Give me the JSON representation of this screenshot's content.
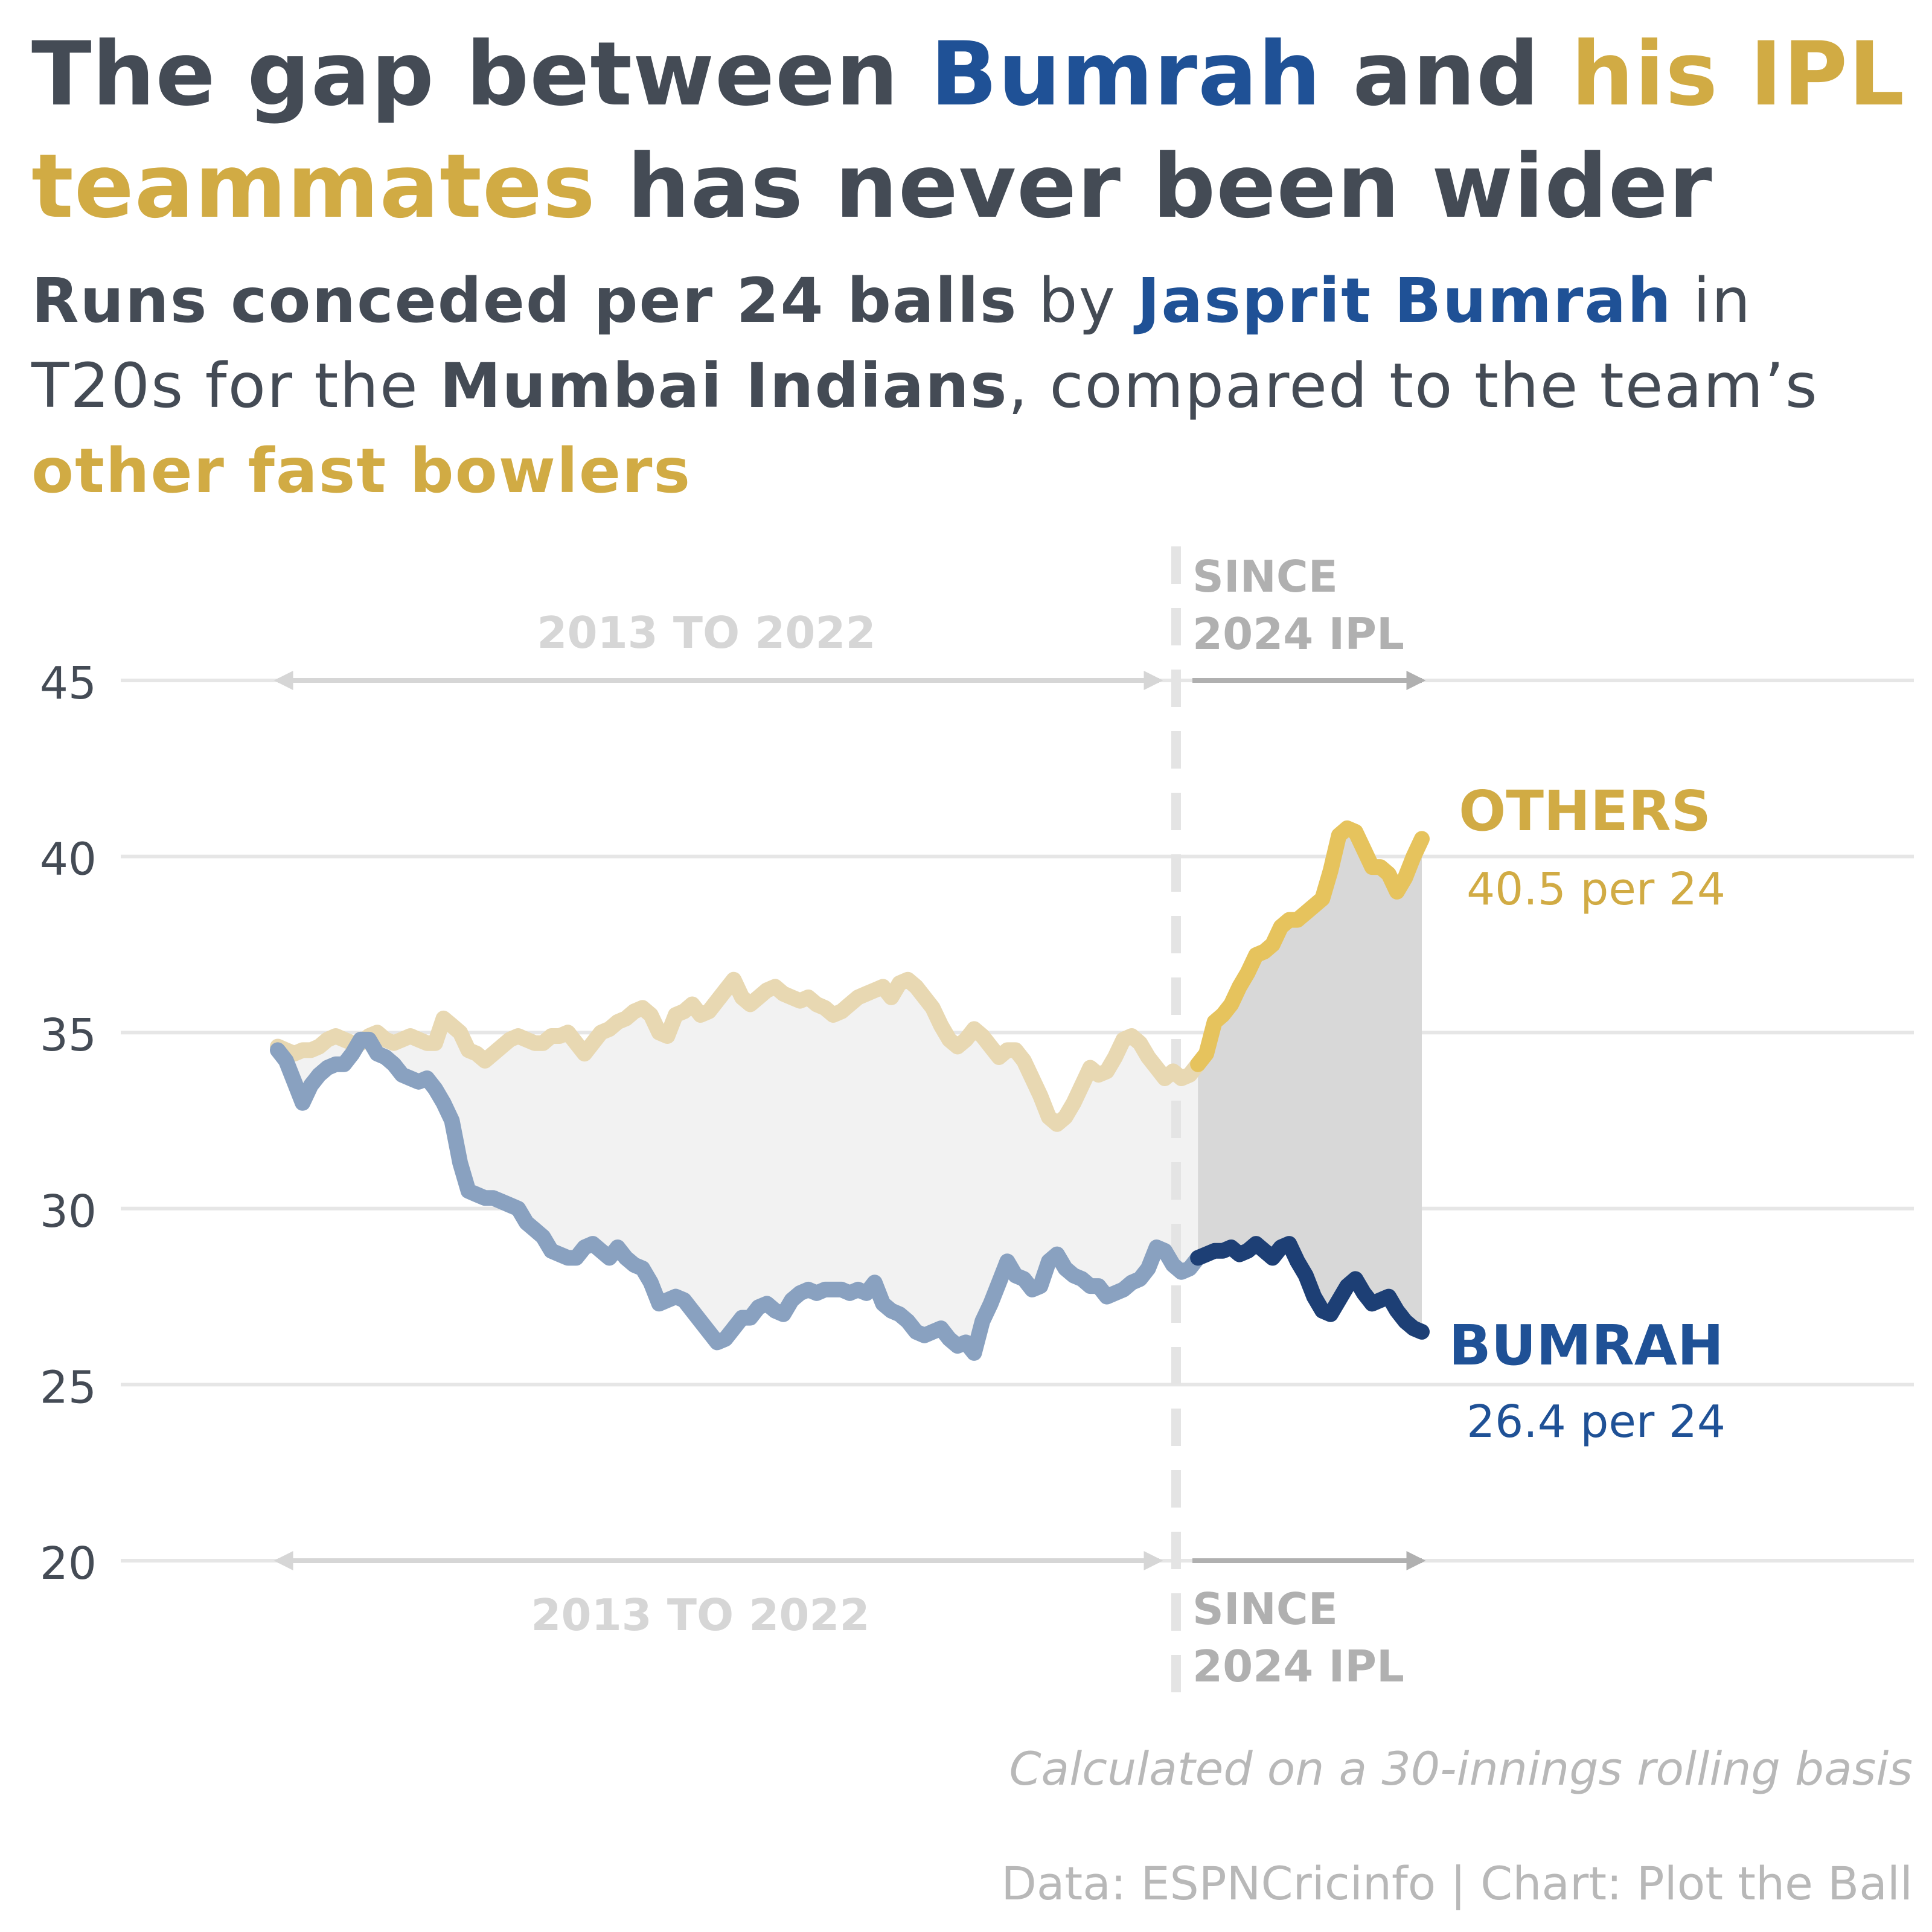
{
  "title": {
    "part1": "The gap between ",
    "bumrah": "Bumrah",
    "part2": " and ",
    "teammates": "his IPL teammates",
    "part3": " has never been wider"
  },
  "subtitle": {
    "lead": "Runs conceded per 24 balls",
    "by": " by ",
    "player": "Jasprit Bumrah",
    "line2a": " in T20s for the ",
    "team": "Mumbai Indians",
    "line2b": ", compared to the team’s ",
    "others": "other fast bowlers"
  },
  "notes": {
    "basis": "Calculated on a 30-innings rolling basis",
    "credit": "Data: ESPNCricinfo | Chart: Plot the Ball"
  },
  "colors": {
    "bumrah_early": "#89a1c0",
    "bumrah_recent": "#1d3f75",
    "bumrah_label": "#1f5196",
    "others_early": "#e8d8b2",
    "others_recent": "#e6c35d",
    "others_label": "#d1ab44",
    "gap_early": "#f2f2f2",
    "gap_recent": "#d8d8d8",
    "grid": "#e6e6e6",
    "axis_text": "#444b55",
    "period_early": "#d6d6d6",
    "period_recent": "#b0b0b0"
  },
  "chart_data": {
    "type": "line",
    "title": "Runs conceded per 24 balls",
    "xlabel": "",
    "ylabel": "",
    "x_unit": "rolling innings index",
    "ylim": [
      20,
      45
    ],
    "yticks": [
      20,
      25,
      30,
      35,
      40,
      45
    ],
    "split_index": 111,
    "periods": [
      {
        "label_line1": "2013 TO 2022",
        "label_line2": ""
      },
      {
        "label_line1": "SINCE",
        "label_line2": "2024 IPL"
      }
    ],
    "series": [
      {
        "name": "OTHERS",
        "end_label": "OTHERS",
        "end_value_label": "40.5 per 24",
        "values": [
          34.6,
          34.5,
          34.4,
          34.5,
          34.5,
          34.6,
          34.8,
          34.9,
          34.8,
          34.7,
          34.7,
          34.9,
          35.0,
          34.8,
          34.7,
          34.8,
          34.9,
          34.8,
          34.7,
          34.7,
          35.4,
          35.2,
          35.0,
          34.5,
          34.4,
          34.2,
          34.4,
          34.6,
          34.8,
          34.9,
          34.8,
          34.7,
          34.7,
          34.9,
          34.9,
          35.0,
          34.7,
          34.4,
          34.7,
          35.0,
          35.1,
          35.3,
          35.4,
          35.6,
          35.7,
          35.5,
          35.0,
          34.9,
          35.5,
          35.6,
          35.8,
          35.5,
          35.6,
          35.9,
          36.2,
          36.5,
          36.0,
          35.8,
          36.0,
          36.2,
          36.3,
          36.1,
          36.0,
          35.9,
          36.0,
          35.8,
          35.7,
          35.5,
          35.6,
          35.8,
          36.0,
          36.1,
          36.2,
          36.3,
          36.0,
          36.4,
          36.5,
          36.3,
          36.0,
          35.7,
          35.2,
          34.8,
          34.6,
          34.8,
          35.1,
          34.9,
          34.6,
          34.3,
          34.5,
          34.5,
          34.2,
          33.7,
          33.2,
          32.6,
          32.4,
          32.6,
          33.0,
          33.5,
          34.0,
          33.8,
          33.9,
          34.3,
          34.8,
          34.9,
          34.7,
          34.3,
          34.0,
          33.7,
          33.9,
          33.7,
          33.8,
          34.1,
          34.4,
          35.3,
          35.5,
          35.8,
          36.3,
          36.7,
          37.2,
          37.3,
          37.5,
          38.0,
          38.2,
          38.2,
          38.4,
          38.6,
          38.8,
          39.6,
          40.6,
          40.8,
          40.7,
          40.2,
          39.7,
          39.7,
          39.5,
          39.0,
          39.4,
          40.0,
          40.5
        ]
      },
      {
        "name": "BUMRAH",
        "end_label": "BUMRAH",
        "end_value_label": "26.4 per 24",
        "values": [
          34.5,
          34.2,
          33.6,
          33.0,
          33.5,
          33.8,
          34.0,
          34.1,
          34.1,
          34.4,
          34.8,
          34.8,
          34.4,
          34.3,
          34.1,
          33.8,
          33.7,
          33.6,
          33.7,
          33.4,
          33.0,
          32.5,
          31.3,
          30.5,
          30.4,
          30.3,
          30.3,
          30.2,
          30.1,
          30.0,
          29.6,
          29.4,
          29.2,
          28.8,
          28.7,
          28.6,
          28.6,
          28.9,
          29.0,
          28.8,
          28.6,
          28.9,
          28.6,
          28.4,
          28.3,
          27.9,
          27.3,
          27.4,
          27.5,
          27.4,
          27.1,
          26.8,
          26.5,
          26.2,
          26.3,
          26.6,
          26.9,
          26.9,
          27.2,
          27.3,
          27.1,
          27.0,
          27.4,
          27.6,
          27.7,
          27.6,
          27.7,
          27.7,
          27.7,
          27.6,
          27.7,
          27.6,
          27.9,
          27.3,
          27.1,
          27.0,
          26.8,
          26.5,
          26.4,
          26.5,
          26.6,
          26.3,
          26.1,
          26.2,
          25.9,
          26.8,
          27.3,
          27.9,
          28.5,
          28.1,
          28.0,
          27.7,
          27.8,
          28.5,
          28.7,
          28.3,
          28.1,
          28.0,
          27.8,
          27.8,
          27.5,
          27.6,
          27.7,
          27.9,
          28.0,
          28.3,
          28.9,
          28.8,
          28.4,
          28.2,
          28.3,
          28.6,
          28.7,
          28.8,
          28.8,
          28.9,
          28.7,
          28.8,
          29.0,
          28.8,
          28.6,
          28.9,
          29.0,
          28.5,
          28.1,
          27.5,
          27.1,
          27.0,
          27.4,
          27.8,
          28.0,
          27.6,
          27.3,
          27.4,
          27.5,
          27.1,
          26.8,
          26.6,
          26.5,
          26.3,
          26.2,
          26.4
        ]
      }
    ]
  }
}
